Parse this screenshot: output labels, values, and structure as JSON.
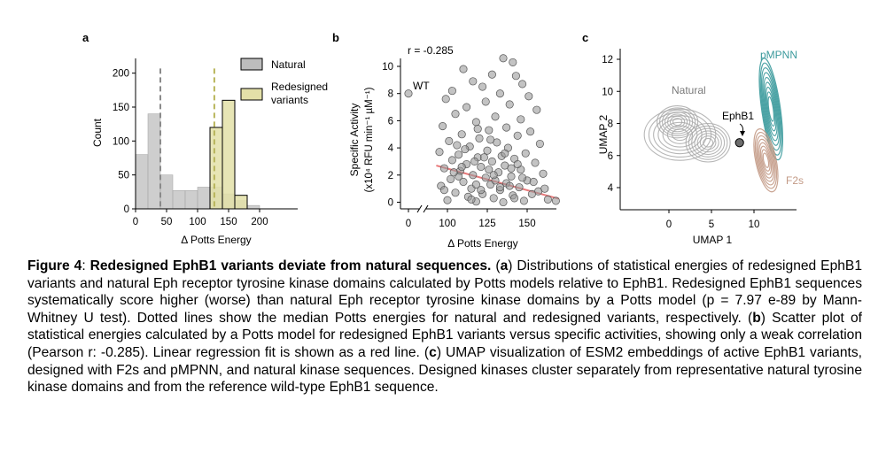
{
  "panels": {
    "a": {
      "label": "a",
      "chart_data": {
        "type": "bar",
        "ylabel": "Count",
        "xlabel": "Δ Potts Energy",
        "xlim": [
          0,
          260
        ],
        "ylim": [
          0,
          220
        ],
        "xticks": [
          "0",
          "50",
          "100",
          "150",
          "200"
        ],
        "yticks": [
          "0",
          "50",
          "100",
          "150",
          "200"
        ],
        "bin_edges": [
          0,
          20,
          40,
          60,
          80,
          100,
          120,
          140,
          160,
          180,
          200
        ],
        "series": [
          {
            "name": "Natural",
            "color": "#bdbdbd",
            "values": [
              80,
              140,
              50,
              27,
              27,
              32,
              32,
              22,
              12,
              5
            ],
            "median": 40
          },
          {
            "name": "Redesigned variants",
            "color": "#e3e0a8",
            "values": [
              0,
              0,
              0,
              0,
              0,
              0,
              120,
              160,
              20,
              0
            ],
            "median": 127
          }
        ],
        "legend": {
          "position": "top-right"
        }
      }
    },
    "b": {
      "label": "b",
      "annotation_r": "r = -0.285",
      "annotation_wt": "WT",
      "chart_data": {
        "type": "scatter",
        "ylabel": "Specific Activity",
        "ylabel2": "(x10⁴ RFU min⁻¹ µM⁻¹)",
        "xlabel": "Δ Potts Energy",
        "xticks": [
          "0",
          "100",
          "125",
          "150"
        ],
        "yticks": [
          "0",
          "2",
          "4",
          "6",
          "8",
          "10"
        ],
        "xlim": [
          80,
          172
        ],
        "ylim": [
          -0.4,
          11
        ],
        "broken_x_axis": true,
        "wt_point": {
          "x": 0,
          "y": 8
        },
        "fit_line": {
          "x": [
            93,
            170
          ],
          "y": [
            2.7,
            0.25
          ],
          "color": "#e8797a"
        },
        "points": [
          {
            "x": 135,
            "y": 10.6
          },
          {
            "x": 141,
            "y": 10.3
          },
          {
            "x": 110,
            "y": 9.8
          },
          {
            "x": 128,
            "y": 9.4
          },
          {
            "x": 143,
            "y": 9.3
          },
          {
            "x": 116,
            "y": 8.9
          },
          {
            "x": 122,
            "y": 8.5
          },
          {
            "x": 147,
            "y": 8.7
          },
          {
            "x": 103,
            "y": 8.2
          },
          {
            "x": 133,
            "y": 8.0
          },
          {
            "x": 151,
            "y": 7.8
          },
          {
            "x": 99,
            "y": 7.6
          },
          {
            "x": 124,
            "y": 7.4
          },
          {
            "x": 139,
            "y": 7.2
          },
          {
            "x": 112,
            "y": 7.0
          },
          {
            "x": 156,
            "y": 6.8
          },
          {
            "x": 105,
            "y": 6.5
          },
          {
            "x": 130,
            "y": 6.3
          },
          {
            "x": 146,
            "y": 6.1
          },
          {
            "x": 118,
            "y": 5.9
          },
          {
            "x": 97,
            "y": 5.6
          },
          {
            "x": 137,
            "y": 5.5
          },
          {
            "x": 126,
            "y": 5.3
          },
          {
            "x": 152,
            "y": 5.2
          },
          {
            "x": 109,
            "y": 5.0
          },
          {
            "x": 144,
            "y": 4.9
          },
          {
            "x": 120,
            "y": 4.7
          },
          {
            "x": 101,
            "y": 4.5
          },
          {
            "x": 131,
            "y": 4.4
          },
          {
            "x": 158,
            "y": 4.3
          },
          {
            "x": 114,
            "y": 4.1
          },
          {
            "x": 138,
            "y": 4.0
          },
          {
            "x": 125,
            "y": 3.8
          },
          {
            "x": 95,
            "y": 3.7
          },
          {
            "x": 149,
            "y": 3.6
          },
          {
            "x": 107,
            "y": 3.5
          },
          {
            "x": 134,
            "y": 3.4
          },
          {
            "x": 119,
            "y": 3.3
          },
          {
            "x": 142,
            "y": 3.2
          },
          {
            "x": 103,
            "y": 3.1
          },
          {
            "x": 128,
            "y": 3.0
          },
          {
            "x": 155,
            "y": 2.9
          },
          {
            "x": 112,
            "y": 2.8
          },
          {
            "x": 136,
            "y": 2.7
          },
          {
            "x": 121,
            "y": 2.6
          },
          {
            "x": 98,
            "y": 2.5
          },
          {
            "x": 146,
            "y": 2.4
          },
          {
            "x": 108,
            "y": 2.3
          },
          {
            "x": 132,
            "y": 2.2
          },
          {
            "x": 160,
            "y": 2.1
          },
          {
            "x": 116,
            "y": 2.0
          },
          {
            "x": 140,
            "y": 1.9
          },
          {
            "x": 124,
            "y": 1.8
          },
          {
            "x": 102,
            "y": 1.7
          },
          {
            "x": 150,
            "y": 1.6
          },
          {
            "x": 110,
            "y": 1.5
          },
          {
            "x": 137,
            "y": 1.4
          },
          {
            "x": 127,
            "y": 1.3
          },
          {
            "x": 96,
            "y": 1.2
          },
          {
            "x": 145,
            "y": 1.1
          },
          {
            "x": 115,
            "y": 1.0
          },
          {
            "x": 133,
            "y": 0.9
          },
          {
            "x": 157,
            "y": 0.8
          },
          {
            "x": 105,
            "y": 0.7
          },
          {
            "x": 122,
            "y": 0.6
          },
          {
            "x": 141,
            "y": 0.5
          },
          {
            "x": 113,
            "y": 0.4
          },
          {
            "x": 129,
            "y": 0.3
          },
          {
            "x": 163,
            "y": 0.2
          },
          {
            "x": 100,
            "y": 0.15
          },
          {
            "x": 148,
            "y": 0.1
          },
          {
            "x": 118,
            "y": 0.05
          },
          {
            "x": 135,
            "y": 0.0
          },
          {
            "x": 168,
            "y": 0.1
          },
          {
            "x": 107,
            "y": 1.9
          },
          {
            "x": 126,
            "y": 2.4
          },
          {
            "x": 139,
            "y": 1.2
          },
          {
            "x": 153,
            "y": 0.6
          },
          {
            "x": 117,
            "y": 3.0
          },
          {
            "x": 130,
            "y": 1.6
          },
          {
            "x": 104,
            "y": 2.2
          },
          {
            "x": 144,
            "y": 2.8
          },
          {
            "x": 121,
            "y": 0.9
          },
          {
            "x": 111,
            "y": 3.9
          },
          {
            "x": 136,
            "y": 3.6
          },
          {
            "x": 127,
            "y": 4.6
          },
          {
            "x": 154,
            "y": 1.5
          },
          {
            "x": 119,
            "y": 5.4
          },
          {
            "x": 142,
            "y": 0.3
          },
          {
            "x": 98,
            "y": 0.9
          },
          {
            "x": 133,
            "y": 1.1
          },
          {
            "x": 109,
            "y": 2.6
          },
          {
            "x": 123,
            "y": 3.3
          },
          {
            "x": 147,
            "y": 1.8
          },
          {
            "x": 115,
            "y": 0.2
          },
          {
            "x": 161,
            "y": 1.0
          },
          {
            "x": 129,
            "y": 2.0
          },
          {
            "x": 106,
            "y": 4.2
          },
          {
            "x": 140,
            "y": 2.5
          },
          {
            "x": 118,
            "y": 1.3
          }
        ]
      }
    },
    "c": {
      "label": "c",
      "chart_data": {
        "type": "contour",
        "xlabel": "UMAP 1",
        "ylabel": "UMAP 2",
        "xticks": [
          "0",
          "5",
          "10"
        ],
        "yticks": [
          "4",
          "6",
          "8",
          "10",
          "12"
        ],
        "xlim": [
          -4.5,
          14
        ],
        "ylim": [
          2.8,
          12.8
        ],
        "series": [
          {
            "name": "Natural",
            "color": "#a9a9a9"
          },
          {
            "name": "pMPNN",
            "color": "#3b9a9c"
          },
          {
            "name": "F2s",
            "color": "#c39a86"
          }
        ],
        "ephb1_label": "EphB1",
        "ephb1_point": {
          "x": 8.3,
          "y": 6.8
        }
      }
    }
  },
  "caption": {
    "figure_label": "Figure 4",
    "title": "Redesigned EphB1 variants deviate from natural sequences.",
    "text_a_1": " (",
    "a_letter": "a",
    "text_a_2": ") Distributions of statistical energies of redesigned EphB1 variants and natural Eph receptor tyrosine kinase domains calculated by Potts models relative to EphB1. Redesigned EphB1 sequences systematically score higher (worse) than natural Eph receptor tyrosine kinase domains by a Potts model (p = 7.97 e-89 by Mann-Whitney U test). Dotted lines show the median Potts energies for natural and redesigned variants, respectively. (",
    "b_letter": "b",
    "text_b": ") Scatter plot of statistical energies calculated by a Potts model for redesigned EphB1 variants versus specific activities, showing only a weak correlation (Pearson r: -0.285). Linear regression fit is shown as a red line. (",
    "c_letter": "c",
    "text_c": ") UMAP visualization of ESM2 embeddings of active EphB1 variants, designed with F2s and pMPNN, and natural kinase sequences. Designed kinases cluster separately from representative natural tyrosine kinase domains and from the reference wild-type EphB1 sequence."
  }
}
